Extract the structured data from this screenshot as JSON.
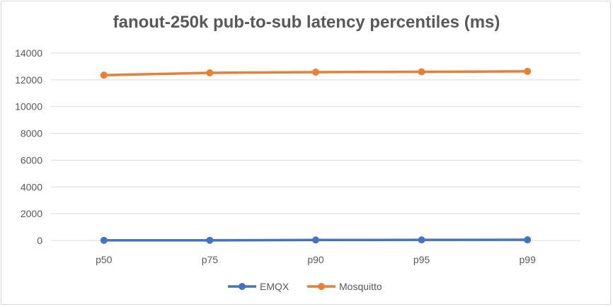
{
  "chart_data": {
    "type": "line",
    "title": "fanout-250k pub-to-sub latency percentiles (ms)",
    "categories": [
      "p50",
      "p75",
      "p90",
      "p95",
      "p99"
    ],
    "series": [
      {
        "name": "EMQX",
        "color": "#4472c4",
        "values": [
          10,
          15,
          40,
          45,
          50
        ]
      },
      {
        "name": "Mosquitto",
        "color": "#ed7d31",
        "values": [
          12350,
          12520,
          12575,
          12600,
          12630
        ]
      }
    ],
    "ylim": [
      0,
      14000
    ],
    "yticks": [
      0,
      2000,
      4000,
      6000,
      8000,
      10000,
      12000,
      14000
    ],
    "grid": true,
    "legend": "bottom"
  }
}
